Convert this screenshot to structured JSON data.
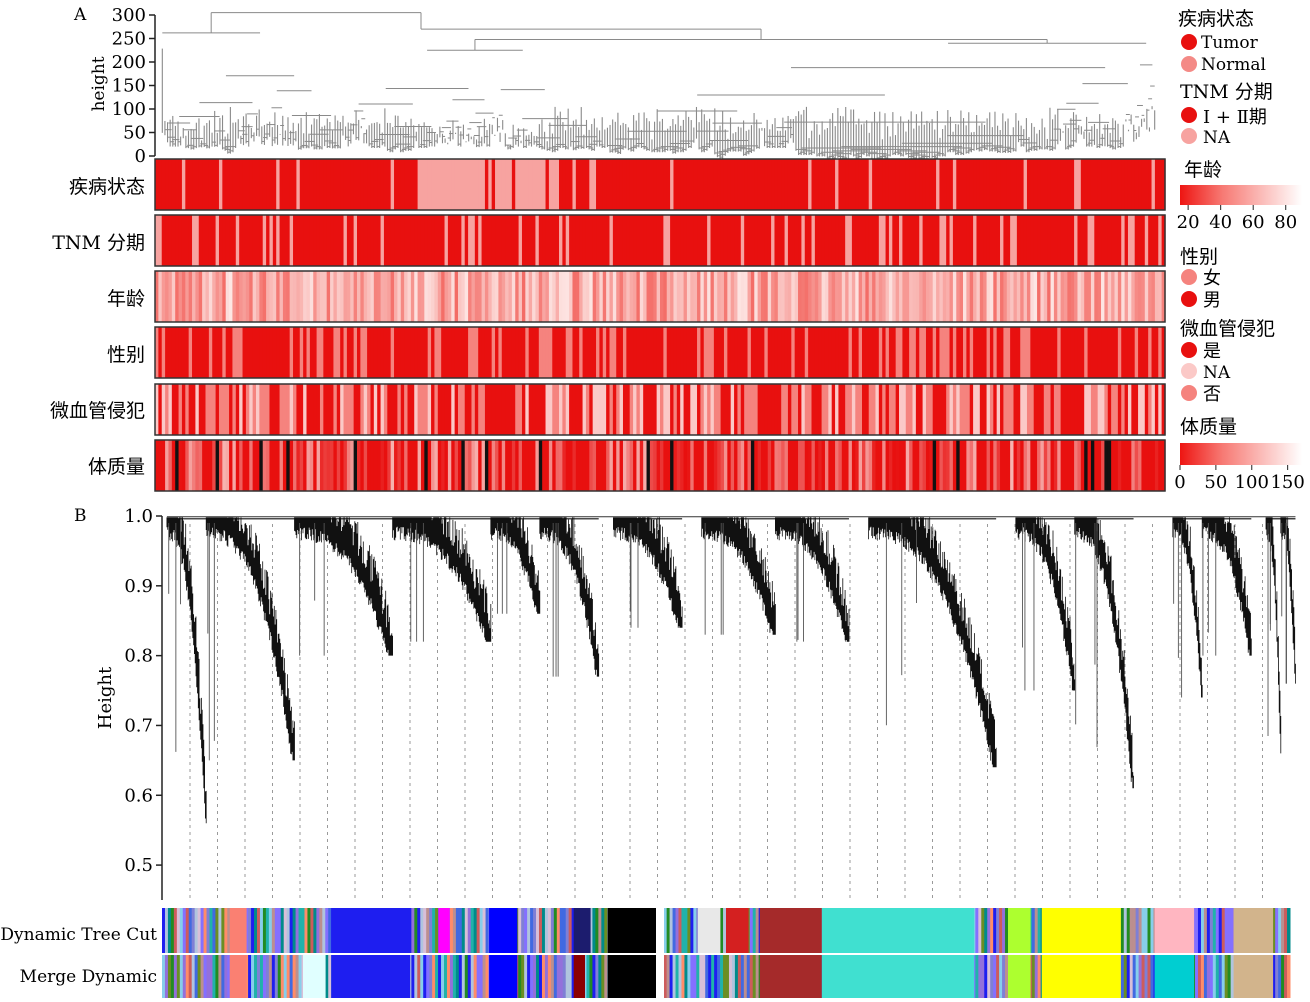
{
  "panels": {
    "a_label": "A",
    "b_label": "B"
  },
  "chart_data": [
    {
      "type": "heatmap",
      "panel": "A",
      "dendrogram": {
        "ylabel": "height",
        "ylim": [
          0,
          300
        ],
        "yticks": [
          0,
          50,
          100,
          150,
          200,
          250,
          300
        ]
      },
      "tracks": [
        {
          "label": "疾病状态",
          "scheme": "binary",
          "palette": [
            "#e8100f",
            "#f7a3a0"
          ],
          "mix": 0.09,
          "light_block": [
            0.26,
            0.4
          ]
        },
        {
          "label": "TNM 分期",
          "scheme": "binary",
          "palette": [
            "#e8100f",
            "#f7a3a0"
          ],
          "mix": 0.2
        },
        {
          "label": "年龄",
          "scheme": "gradient",
          "palette": [
            "#ee2a22",
            "#fde6e4"
          ],
          "mix": 0.0
        },
        {
          "label": "性别",
          "scheme": "binary",
          "palette": [
            "#e8100f",
            "#f5837e"
          ],
          "mix": 0.27
        },
        {
          "label": "微血管侵犯",
          "scheme": "ternary",
          "palette": [
            "#e8100f",
            "#f5837e",
            "#fbc9c7"
          ],
          "mix": 0.55
        },
        {
          "label": "体质量",
          "scheme": "weight",
          "palette": [
            "#e8100f",
            "#f7b4b1",
            "#111111"
          ],
          "mix": 0.5
        }
      ],
      "legend": {
        "disease": {
          "title": "疾病状态",
          "items": [
            {
              "label": "Tumor",
              "color": "#e8100f"
            },
            {
              "label": "Normal",
              "color": "#f48a86"
            }
          ]
        },
        "tnm": {
          "title": "TNM 分期",
          "items": [
            {
              "label": "Ⅰ + Ⅱ期",
              "color": "#e8100f"
            },
            {
              "label": "NA",
              "color": "#f7a3a0"
            }
          ]
        },
        "age": {
          "title": "年龄",
          "ticks": [
            20,
            40,
            60,
            80
          ],
          "range": [
            15,
            90
          ]
        },
        "sex": {
          "title": "性别",
          "items": [
            {
              "label": "女",
              "color": "#f5837e"
            },
            {
              "label": "男",
              "color": "#e8100f"
            }
          ]
        },
        "mvi": {
          "title": "微血管侵犯",
          "items": [
            {
              "label": "是",
              "color": "#e8100f"
            },
            {
              "label": "NA",
              "color": "#fbc9c7"
            },
            {
              "label": "否",
              "color": "#f5837e"
            }
          ]
        },
        "weight": {
          "title": "体质量",
          "ticks": [
            0,
            50,
            100,
            150
          ],
          "range": [
            0,
            170
          ]
        }
      }
    },
    {
      "type": "dendrogram",
      "panel": "B",
      "ylabel": "Height",
      "ylim": [
        0.45,
        1.0
      ],
      "yticks": [
        "1.0",
        "0.9",
        "0.8",
        "0.7",
        "0.6",
        "0.5"
      ],
      "tick_values": [
        1.0,
        0.9,
        0.8,
        0.7,
        0.6,
        0.5
      ],
      "clusters": [
        {
          "start": 0.005,
          "end": 0.045,
          "min": 0.56
        },
        {
          "start": 0.045,
          "end": 0.135,
          "min": 0.65
        },
        {
          "start": 0.135,
          "end": 0.235,
          "min": 0.8
        },
        {
          "start": 0.235,
          "end": 0.335,
          "min": 0.82
        },
        {
          "start": 0.335,
          "end": 0.385,
          "min": 0.86
        },
        {
          "start": 0.385,
          "end": 0.445,
          "min": 0.77
        },
        {
          "start": 0.46,
          "end": 0.53,
          "min": 0.84
        },
        {
          "start": 0.55,
          "end": 0.625,
          "min": 0.83
        },
        {
          "start": 0.625,
          "end": 0.7,
          "min": 0.82
        },
        {
          "start": 0.72,
          "end": 0.85,
          "min": 0.64
        },
        {
          "start": 0.87,
          "end": 0.93,
          "min": 0.75
        },
        {
          "start": 0.93,
          "end": 0.99,
          "min": 0.61
        },
        {
          "start": 1.03,
          "end": 1.06,
          "min": 0.74
        },
        {
          "start": 1.06,
          "end": 1.11,
          "min": 0.8
        },
        {
          "start": 1.125,
          "end": 1.14,
          "min": 0.66
        },
        {
          "start": 1.14,
          "end": 1.155,
          "min": 0.76
        }
      ],
      "module_rows": [
        {
          "label": "Dynamic Tree Cut",
          "blocks": [
            {
              "s": 0.06,
              "e": 0.075,
              "c": "#fa8072"
            },
            {
              "s": 0.15,
              "e": 0.22,
              "c": "#1e1ef0"
            },
            {
              "s": 0.245,
              "e": 0.255,
              "c": "#ff00ff"
            },
            {
              "s": 0.29,
              "e": 0.315,
              "c": "#0000ff"
            },
            {
              "s": 0.365,
              "e": 0.38,
              "c": "#1c1c6e"
            },
            {
              "s": 0.395,
              "e": 0.44,
              "c": "#000000"
            },
            {
              "s": 0.475,
              "e": 0.495,
              "c": "#e8e8e8"
            },
            {
              "s": 0.5,
              "e": 0.52,
              "c": "#d42020"
            },
            {
              "s": 0.53,
              "e": 0.585,
              "c": "#a52a2a"
            },
            {
              "s": 0.585,
              "e": 0.72,
              "c": "#40e0d0"
            },
            {
              "s": 0.75,
              "e": 0.77,
              "c": "#adff2f"
            },
            {
              "s": 0.78,
              "e": 0.85,
              "c": "#ffff00"
            },
            {
              "s": 0.88,
              "e": 0.915,
              "c": "#ffb6c1"
            },
            {
              "s": 0.95,
              "e": 0.985,
              "c": "#d2b48c"
            }
          ]
        },
        {
          "label": "Merge Dynamic",
          "blocks": [
            {
              "s": 0.06,
              "e": 0.075,
              "c": "#fa8072"
            },
            {
              "s": 0.125,
              "e": 0.145,
              "c": "#e0ffff"
            },
            {
              "s": 0.15,
              "e": 0.22,
              "c": "#1e1ef0"
            },
            {
              "s": 0.29,
              "e": 0.315,
              "c": "#0000ff"
            },
            {
              "s": 0.365,
              "e": 0.375,
              "c": "#8b0000"
            },
            {
              "s": 0.395,
              "e": 0.44,
              "c": "#000000"
            },
            {
              "s": 0.53,
              "e": 0.585,
              "c": "#a52a2a"
            },
            {
              "s": 0.585,
              "e": 0.72,
              "c": "#40e0d0"
            },
            {
              "s": 0.75,
              "e": 0.77,
              "c": "#adff2f"
            },
            {
              "s": 0.78,
              "e": 0.85,
              "c": "#ffff00"
            },
            {
              "s": 0.88,
              "e": 0.915,
              "c": "#00ced1"
            },
            {
              "s": 0.95,
              "e": 0.985,
              "c": "#d2b48c"
            }
          ]
        }
      ],
      "palette": [
        "#1e1ef0",
        "#4169e1",
        "#7f7fd5",
        "#6b8e23",
        "#008b8b",
        "#ff8c69",
        "#8470ff",
        "#9370db",
        "#20b2aa",
        "#b0c4de",
        "#cd5c5c",
        "#228b22",
        "#87ceeb",
        "#bc8f8f",
        "#d8bfd8"
      ]
    }
  ]
}
